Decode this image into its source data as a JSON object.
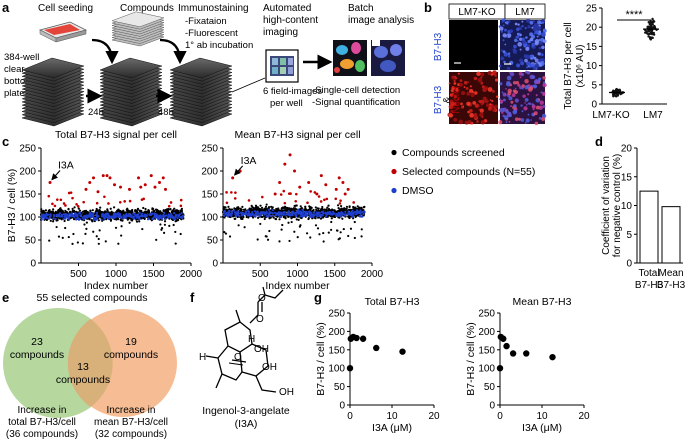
{
  "panels": {
    "a": {
      "letter": "a",
      "steps": {
        "cell_seeding": "Cell seeding",
        "compounds": "Compounds",
        "immunostaining": "Immunostaining",
        "immuno_items": [
          "-Fixataion",
          "-Fluorescent",
          "1° ab incubation"
        ],
        "imaging": [
          "Automated",
          "high-content",
          "imaging"
        ],
        "batch": [
          "Batch",
          "image analysis"
        ],
        "plates": [
          "384-well",
          "clear",
          "bottom",
          "plates"
        ],
        "t24": "24h",
        "t48": "48h",
        "fields": [
          "6 field-images",
          "per well"
        ],
        "analysis": [
          "-Single-cell detection",
          "-Signal quantification"
        ]
      }
    },
    "b": {
      "letter": "b",
      "col_labels": [
        "LM7-KO",
        "LM7"
      ],
      "row_label_top": "B7-H3",
      "row_label_bottom": [
        "B7-H3",
        "&",
        "Nuclei"
      ],
      "ylabel": [
        "Total B7-H3 per cell",
        "(x10⁶ AU)"
      ],
      "significance": "****"
    },
    "c": {
      "letter": "c"
    },
    "d": {
      "letter": "d"
    },
    "e": {
      "letter": "e",
      "title": "55 selected compounds",
      "left": [
        "23",
        "compounds"
      ],
      "right": [
        "19",
        "compounds"
      ],
      "overlap": [
        "13",
        "compounds"
      ],
      "left_caption": [
        "Increase in",
        "total B7-H3/cell",
        "(36 compounds)"
      ],
      "right_caption": [
        "Increase in",
        "mean B7-H3/cell",
        "(32 compounds)"
      ],
      "colors": {
        "left": "#a9d18e",
        "right": "#f4b183"
      }
    },
    "f": {
      "letter": "f",
      "name": "Ingenol-3-angelate",
      "abbr": "(I3A)",
      "atoms": {
        "o": "O",
        "oh": "OH",
        "h": "H"
      }
    },
    "g": {
      "letter": "g"
    }
  },
  "legend_c": {
    "items": [
      {
        "label": "Compounds screened",
        "color": "#000000"
      },
      {
        "label": "Selected compounds (N=55)",
        "color": "#c00000"
      },
      {
        "label": "DMSO",
        "color": "#1f3fd0"
      }
    ]
  },
  "chart_data": [
    {
      "id": "b-plot",
      "type": "scatter",
      "title": "",
      "categories": [
        "LM7-KO",
        "LM7"
      ],
      "ylabel": "Total B7-H3 per cell (x10⁶ AU)",
      "ylim": [
        0,
        25
      ],
      "yticks": [
        0,
        5,
        10,
        15,
        20,
        25
      ],
      "means": [
        3,
        19.5
      ],
      "spread": [
        0.8,
        2.5
      ],
      "annotation": "****"
    },
    {
      "id": "c-total",
      "type": "scatter",
      "title": "Total B7-H3 signal per cell",
      "xlabel": "Index number",
      "ylabel": "B7-H3 / cell (%)",
      "xlim": [
        0,
        2000
      ],
      "xticks": [
        500,
        1000,
        1500,
        2000
      ],
      "ylim": [
        0,
        250
      ],
      "yticks": [
        0,
        50,
        100,
        150,
        200,
        250
      ],
      "baseline": 105,
      "annotation": {
        "label": "I3A",
        "x": 120,
        "y": 175
      },
      "selected": [
        [
          120,
          175
        ],
        [
          600,
          160
        ],
        [
          650,
          175
        ],
        [
          700,
          185
        ],
        [
          760,
          155
        ],
        [
          830,
          190
        ],
        [
          880,
          190
        ],
        [
          920,
          185
        ],
        [
          980,
          170
        ],
        [
          1060,
          165
        ],
        [
          1180,
          160
        ],
        [
          1300,
          185
        ],
        [
          1330,
          165
        ],
        [
          1390,
          170
        ],
        [
          1470,
          190
        ],
        [
          1520,
          165
        ],
        [
          1580,
          175
        ],
        [
          1630,
          185
        ],
        [
          1660,
          160
        ]
      ]
    },
    {
      "id": "c-mean",
      "type": "scatter",
      "title": "Mean B7-H3 signal per cell",
      "xlabel": "Index number",
      "ylabel": "",
      "xlim": [
        0,
        2000
      ],
      "xticks": [
        500,
        1000,
        1500,
        2000
      ],
      "ylim": [
        0,
        250
      ],
      "yticks": [
        0,
        50,
        100,
        150,
        200,
        250
      ],
      "baseline": 110,
      "annotation": {
        "label": "I3A",
        "x": 130,
        "y": 185
      },
      "selected": [
        [
          130,
          185
        ],
        [
          230,
          200
        ],
        [
          700,
          150
        ],
        [
          760,
          175
        ],
        [
          830,
          215
        ],
        [
          900,
          235
        ],
        [
          960,
          200
        ],
        [
          1030,
          165
        ],
        [
          1150,
          175
        ],
        [
          1260,
          150
        ],
        [
          1320,
          190
        ],
        [
          1380,
          170
        ],
        [
          1520,
          160
        ],
        [
          1560,
          185
        ],
        [
          1610,
          175
        ],
        [
          1640,
          150
        ],
        [
          1680,
          160
        ]
      ]
    },
    {
      "id": "d-bar",
      "type": "bar",
      "title": "",
      "categories": [
        "Total B7-H3",
        "Mean B7-H3"
      ],
      "values": [
        12.5,
        9.8
      ],
      "ylabel": "Coefficient of variation for negative control (%)",
      "ylim": [
        0,
        20
      ],
      "yticks": [
        0,
        5,
        10,
        15,
        20
      ]
    },
    {
      "id": "g-total",
      "type": "scatter",
      "title": "Total B7-H3",
      "xlabel": "I3A (μM)",
      "ylabel": "B7-H3 / cell (%)",
      "x": [
        0,
        0.19,
        0.78,
        1.56,
        3.12,
        6.25,
        12.5
      ],
      "y": [
        100,
        180,
        185,
        182,
        180,
        155,
        145
      ],
      "xlim": [
        0,
        20
      ],
      "xticks": [
        0,
        10,
        20
      ],
      "ylim": [
        0,
        250
      ],
      "yticks": [
        0,
        50,
        100,
        150,
        200,
        250
      ]
    },
    {
      "id": "g-mean",
      "type": "scatter",
      "title": "Mean B7-H3",
      "xlabel": "I3A (μM)",
      "ylabel": "B7-H3 / cell (%)",
      "x": [
        0,
        0.19,
        0.78,
        1.56,
        3.12,
        6.25,
        12.5
      ],
      "y": [
        100,
        185,
        180,
        160,
        140,
        140,
        130
      ],
      "xlim": [
        0,
        20
      ],
      "xticks": [
        0,
        10,
        20
      ],
      "ylim": [
        0,
        250
      ],
      "yticks": [
        0,
        50,
        100,
        150,
        200,
        250
      ]
    }
  ]
}
